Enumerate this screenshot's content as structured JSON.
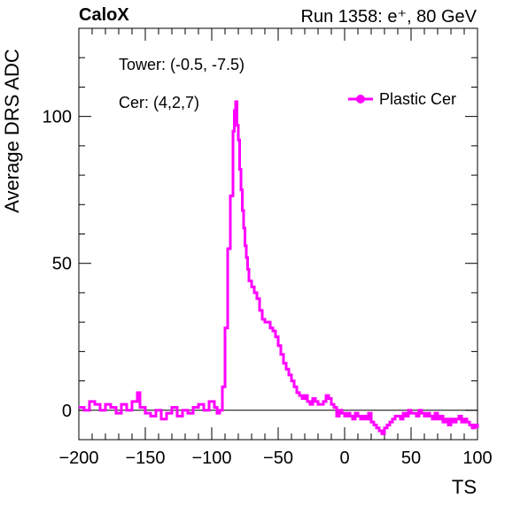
{
  "header": {
    "brand": "CaloX",
    "run_info": "Run 1358: e⁺, 80 GeV"
  },
  "annotations": {
    "tower": "Tower: (-0.5, -7.5)",
    "cer": "Cer: (4,2,7)"
  },
  "chart_data": {
    "type": "line",
    "xlabel": "TS",
    "ylabel": "Average DRS ADC",
    "xlim": [
      -200,
      100
    ],
    "ylim": [
      -10,
      130
    ],
    "xticks": [
      -200,
      -150,
      -100,
      -50,
      0,
      50,
      100
    ],
    "yticks": [
      0,
      50,
      100
    ],
    "grid": false,
    "legend_position": "top-right",
    "zero_line": true,
    "series": [
      {
        "name": "Plastic Cer",
        "color": "#ff00ff",
        "x": [
          -200,
          -196,
          -192,
          -188,
          -184,
          -180,
          -176,
          -172,
          -168,
          -164,
          -160,
          -156,
          -154,
          -150,
          -146,
          -142,
          -138,
          -134,
          -130,
          -126,
          -122,
          -118,
          -114,
          -110,
          -106,
          -102,
          -98,
          -96,
          -94,
          -92,
          -90,
          -88,
          -86,
          -84,
          -83,
          -82,
          -81,
          -80,
          -79,
          -78,
          -77,
          -76,
          -75,
          -74,
          -73,
          -72,
          -70,
          -68,
          -66,
          -64,
          -62,
          -60,
          -58,
          -56,
          -54,
          -52,
          -50,
          -48,
          -46,
          -44,
          -42,
          -40,
          -38,
          -36,
          -34,
          -32,
          -30,
          -28,
          -26,
          -24,
          -22,
          -20,
          -18,
          -16,
          -14,
          -12,
          -10,
          -8,
          -6,
          -4,
          -2,
          0,
          2,
          4,
          6,
          8,
          10,
          12,
          14,
          16,
          18,
          20,
          22,
          24,
          26,
          28,
          30,
          32,
          34,
          36,
          38,
          40,
          42,
          44,
          46,
          48,
          50,
          52,
          54,
          56,
          58,
          60,
          62,
          64,
          66,
          68,
          70,
          72,
          74,
          76,
          78,
          80,
          82,
          84,
          86,
          88,
          90,
          92,
          94,
          96,
          98,
          100
        ],
        "y": [
          1,
          0,
          3,
          2,
          0,
          2,
          1,
          -1,
          2,
          0,
          3,
          6,
          1,
          -1,
          -2,
          0,
          -3,
          -1,
          1,
          -2,
          0,
          -1,
          1,
          2,
          0,
          3,
          1,
          -1,
          0,
          8,
          28,
          55,
          73,
          95,
          102,
          105,
          97,
          92,
          82,
          75,
          68,
          62,
          56,
          52,
          48,
          44,
          42,
          40,
          38,
          34,
          31,
          30,
          30,
          28,
          27,
          25,
          22,
          19,
          16,
          14,
          12,
          10,
          8,
          6,
          5,
          4,
          5,
          3,
          2,
          4,
          3,
          2,
          2,
          3,
          5,
          4,
          2,
          1,
          -2,
          0,
          -1,
          -2,
          -1,
          -2,
          -3,
          -1,
          -2,
          -3,
          -2,
          -3,
          -1,
          -4,
          -5,
          -6,
          -7,
          -8,
          -6,
          -5,
          -4,
          -3,
          -2,
          -2,
          -3,
          -1,
          -2,
          0,
          -1,
          -1,
          -2,
          0,
          -1,
          -2,
          -1,
          -2,
          -3,
          -1,
          -3,
          -2,
          -4,
          -3,
          -5,
          -3,
          -4,
          -3,
          -2,
          -4,
          -3,
          -4,
          -5,
          -6,
          -5,
          -6
        ]
      }
    ]
  }
}
